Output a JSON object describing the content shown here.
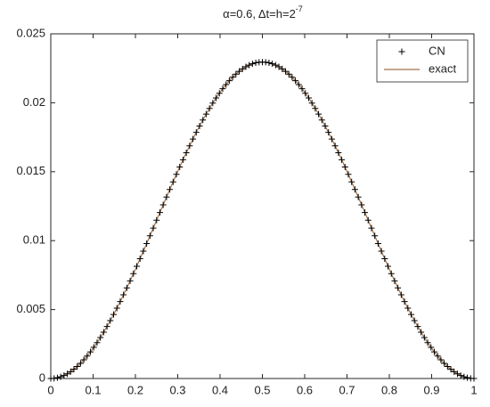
{
  "chart_data": {
    "type": "line",
    "title": "α=0.6, Δt=h=2",
    "title_exponent": "-7",
    "x": [
      0,
      0.0078125,
      0.015625,
      0.0234375,
      0.03125,
      0.0390625,
      0.046875,
      0.0546875,
      0.0625,
      0.0703125,
      0.078125,
      0.0859375,
      0.09375,
      0.1015625,
      0.109375,
      0.1171875,
      0.125,
      0.1328125,
      0.140625,
      0.1484375,
      0.15625,
      0.1640625,
      0.171875,
      0.1796875,
      0.1875,
      0.1953125,
      0.203125,
      0.2109375,
      0.21875,
      0.2265625,
      0.234375,
      0.2421875,
      0.25,
      0.2578125,
      0.265625,
      0.2734375,
      0.28125,
      0.2890625,
      0.296875,
      0.3046875,
      0.3125,
      0.3203125,
      0.328125,
      0.3359375,
      0.34375,
      0.3515625,
      0.359375,
      0.3671875,
      0.375,
      0.3828125,
      0.390625,
      0.3984375,
      0.40625,
      0.4140625,
      0.421875,
      0.4296875,
      0.4375,
      0.4453125,
      0.453125,
      0.4609375,
      0.46875,
      0.4765625,
      0.484375,
      0.4921875,
      0.5,
      0.5078125,
      0.515625,
      0.5234375,
      0.53125,
      0.5390625,
      0.546875,
      0.5546875,
      0.5625,
      0.5703125,
      0.578125,
      0.5859375,
      0.59375,
      0.6015625,
      0.609375,
      0.6171875,
      0.625,
      0.6328125,
      0.640625,
      0.6484375,
      0.65625,
      0.6640625,
      0.671875,
      0.6796875,
      0.6875,
      0.6953125,
      0.703125,
      0.7109375,
      0.71875,
      0.7265625,
      0.734375,
      0.7421875,
      0.75,
      0.7578125,
      0.765625,
      0.7734375,
      0.78125,
      0.7890625,
      0.796875,
      0.8046875,
      0.8125,
      0.8203125,
      0.828125,
      0.8359375,
      0.84375,
      0.8515625,
      0.859375,
      0.8671875,
      0.875,
      0.8828125,
      0.890625,
      0.8984375,
      0.90625,
      0.9140625,
      0.921875,
      0.9296875,
      0.9375,
      0.9453125,
      0.953125,
      0.9609375,
      0.96875,
      0.9765625,
      0.984375,
      0.9921875,
      1
    ],
    "series": [
      {
        "name": "CN",
        "color": "#000000",
        "marker": "plus",
        "values": [
          0,
          1e-05,
          6e-05,
          0.00012,
          0.00022,
          0.00034,
          0.00049,
          0.00067,
          0.00087,
          0.0011,
          0.00136,
          0.00163,
          0.00193,
          0.00226,
          0.0026,
          0.00297,
          0.00336,
          0.00377,
          0.0042,
          0.00464,
          0.0051,
          0.00558,
          0.00607,
          0.00657,
          0.00708,
          0.00761,
          0.00814,
          0.00869,
          0.00924,
          0.00979,
          0.01035,
          0.01091,
          0.01148,
          0.01204,
          0.0126,
          0.01316,
          0.01371,
          0.01426,
          0.01481,
          0.01534,
          0.01587,
          0.01638,
          0.01688,
          0.01737,
          0.01785,
          0.01831,
          0.01875,
          0.01918,
          0.01959,
          0.01998,
          0.02035,
          0.02069,
          0.02102,
          0.02132,
          0.0216,
          0.02185,
          0.02208,
          0.02228,
          0.02246,
          0.02261,
          0.02273,
          0.02283,
          0.0229,
          0.02294,
          0.02295,
          0.02294,
          0.0229,
          0.02283,
          0.02273,
          0.02261,
          0.02246,
          0.02228,
          0.02208,
          0.02185,
          0.0216,
          0.02132,
          0.02102,
          0.02069,
          0.02035,
          0.01998,
          0.01959,
          0.01918,
          0.01875,
          0.01831,
          0.01785,
          0.01737,
          0.01688,
          0.01638,
          0.01587,
          0.01534,
          0.01481,
          0.01426,
          0.01371,
          0.01316,
          0.0126,
          0.01204,
          0.01148,
          0.01091,
          0.01035,
          0.00979,
          0.00924,
          0.00869,
          0.00814,
          0.00761,
          0.00708,
          0.00657,
          0.00607,
          0.00558,
          0.0051,
          0.00464,
          0.0042,
          0.00377,
          0.00336,
          0.00297,
          0.0026,
          0.00226,
          0.00193,
          0.00163,
          0.00136,
          0.0011,
          0.00087,
          0.00067,
          0.00049,
          0.00034,
          0.00022,
          0.00012,
          6e-05,
          1e-05,
          0
        ]
      },
      {
        "name": "exact",
        "color": "#a0724a",
        "marker": "none",
        "values": [
          0,
          1e-05,
          6e-05,
          0.00012,
          0.00022,
          0.00034,
          0.00049,
          0.00067,
          0.00087,
          0.0011,
          0.00136,
          0.00163,
          0.00193,
          0.00226,
          0.0026,
          0.00297,
          0.00336,
          0.00377,
          0.0042,
          0.00464,
          0.0051,
          0.00558,
          0.00607,
          0.00657,
          0.00708,
          0.00761,
          0.00814,
          0.00869,
          0.00924,
          0.00979,
          0.01035,
          0.01091,
          0.01148,
          0.01204,
          0.0126,
          0.01316,
          0.01371,
          0.01426,
          0.01481,
          0.01534,
          0.01587,
          0.01638,
          0.01688,
          0.01737,
          0.01785,
          0.01831,
          0.01875,
          0.01918,
          0.01959,
          0.01998,
          0.02035,
          0.02069,
          0.02102,
          0.02132,
          0.0216,
          0.02185,
          0.02208,
          0.02228,
          0.02246,
          0.02261,
          0.02273,
          0.02283,
          0.0229,
          0.02294,
          0.02295,
          0.02294,
          0.0229,
          0.02283,
          0.02273,
          0.02261,
          0.02246,
          0.02228,
          0.02208,
          0.02185,
          0.0216,
          0.02132,
          0.02102,
          0.02069,
          0.02035,
          0.01998,
          0.01959,
          0.01918,
          0.01875,
          0.01831,
          0.01785,
          0.01737,
          0.01688,
          0.01638,
          0.01587,
          0.01534,
          0.01481,
          0.01426,
          0.01371,
          0.01316,
          0.0126,
          0.01204,
          0.01148,
          0.01091,
          0.01035,
          0.00979,
          0.00924,
          0.00869,
          0.00814,
          0.00761,
          0.00708,
          0.00657,
          0.00607,
          0.00558,
          0.0051,
          0.00464,
          0.0042,
          0.00377,
          0.00336,
          0.00297,
          0.0026,
          0.00226,
          0.00193,
          0.00163,
          0.00136,
          0.0011,
          0.00087,
          0.00067,
          0.00049,
          0.00034,
          0.00022,
          0.00012,
          6e-05,
          1e-05,
          0
        ]
      }
    ],
    "xlim": [
      0,
      1
    ],
    "xticks": [
      0,
      0.1,
      0.2,
      0.3,
      0.4,
      0.5,
      0.6,
      0.7,
      0.8,
      0.9,
      1
    ],
    "ylim": [
      0,
      0.025
    ],
    "yticks": [
      0,
      0.005,
      0.01,
      0.015,
      0.02,
      0.025
    ],
    "grid": false,
    "legend": "top-right"
  }
}
